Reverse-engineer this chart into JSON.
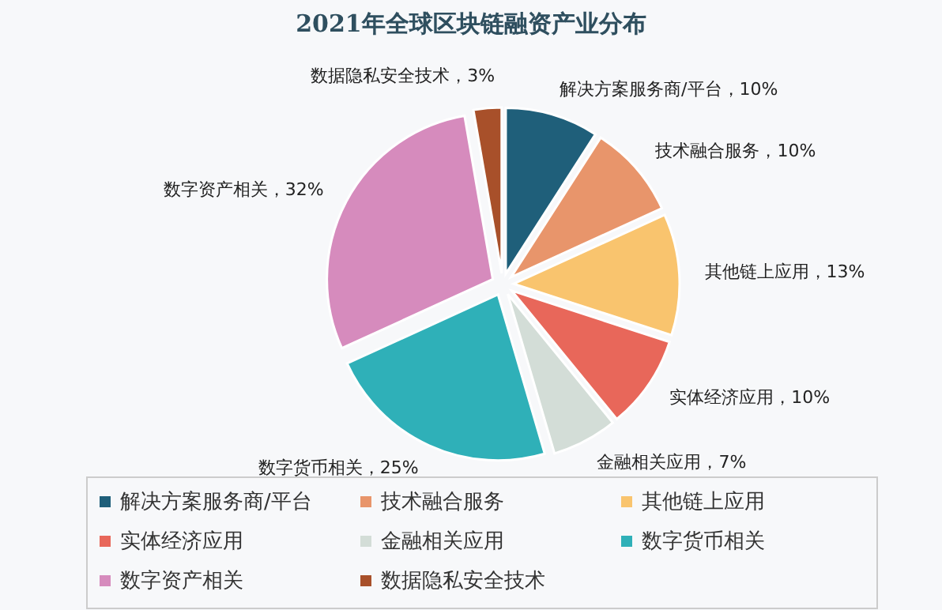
{
  "chart_data": {
    "type": "pie",
    "title": "2021年全球区块链融资产业分布",
    "categories": [
      "解决方案服务商/平台",
      "技术融合服务",
      "其他链上应用",
      "实体经济应用",
      "金融相关应用",
      "数字货币相关",
      "数字资产相关",
      "数据隐私安全技术"
    ],
    "values": [
      10,
      10,
      13,
      10,
      7,
      25,
      32,
      3
    ],
    "colors": [
      "#1f5f7a",
      "#e8956b",
      "#f9c46e",
      "#e8675a",
      "#d3ddd7",
      "#2fb0b8",
      "#d68bbd",
      "#a8502a"
    ],
    "value_labels": [
      "解决方案服务商/平台，10%",
      "技术融合服务，10%",
      "其他链上应用，13%",
      "实体经济应用，10%",
      "金融相关应用，7%",
      "数字货币相关，25%",
      "数字资产相关，32%",
      "数据隐私安全技术，3%"
    ],
    "legend": "bottom"
  }
}
